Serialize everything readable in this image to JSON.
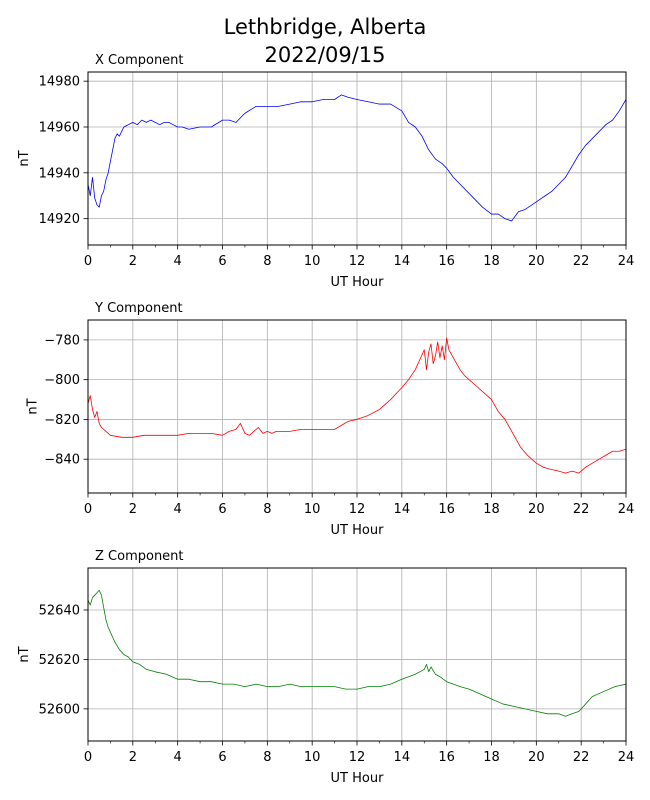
{
  "title": {
    "line1": "Lethbridge, Alberta",
    "line2": "2022/09/15"
  },
  "chart_data": [
    {
      "type": "line",
      "title": "X Component",
      "xlabel": "UT Hour",
      "ylabel": "nT",
      "xlim": [
        0,
        24
      ],
      "ylim": [
        14908.5,
        14984
      ],
      "xticks": [
        0,
        2,
        4,
        6,
        8,
        10,
        12,
        14,
        16,
        18,
        20,
        22,
        24
      ],
      "yticks": [
        14920,
        14940,
        14960,
        14980
      ],
      "grid": true,
      "series": [
        {
          "color": "#0000ff",
          "x": [
            0,
            0.1,
            0.2,
            0.3,
            0.4,
            0.5,
            0.6,
            0.7,
            0.8,
            0.9,
            1.0,
            1.1,
            1.2,
            1.3,
            1.4,
            1.5,
            1.6,
            1.8,
            2.0,
            2.2,
            2.4,
            2.6,
            2.8,
            3.0,
            3.2,
            3.4,
            3.6,
            3.8,
            4.0,
            4.2,
            4.5,
            5.0,
            5.5,
            6.0,
            6.3,
            6.6,
            7.0,
            7.5,
            8.0,
            8.5,
            9.0,
            9.5,
            10.0,
            10.5,
            11.0,
            11.3,
            11.6,
            12.0,
            12.5,
            13.0,
            13.5,
            14.0,
            14.3,
            14.6,
            14.9,
            15.2,
            15.5,
            15.8,
            16.0,
            16.3,
            16.6,
            17.0,
            17.3,
            17.6,
            18.0,
            18.3,
            18.6,
            18.9,
            19.2,
            19.5,
            19.8,
            20.1,
            20.4,
            20.7,
            21.0,
            21.3,
            21.6,
            21.9,
            22.2,
            22.5,
            22.8,
            23.1,
            23.4,
            23.7,
            24.0
          ],
          "y": [
            14935,
            14930,
            14938,
            14929,
            14926,
            14925,
            14930,
            14932,
            14937,
            14940,
            14945,
            14950,
            14955,
            14957,
            14956,
            14958,
            14960,
            14961,
            14962,
            14961,
            14963,
            14962,
            14963,
            14962,
            14961,
            14962,
            14962,
            14961,
            14960,
            14960,
            14959,
            14960,
            14960,
            14963,
            14963,
            14962,
            14966,
            14969,
            14969,
            14969,
            14970,
            14971,
            14971,
            14972,
            14972,
            14974,
            14973,
            14972,
            14971,
            14970,
            14970,
            14967,
            14962,
            14960,
            14956,
            14950,
            14946,
            14944,
            14942,
            14938,
            14935,
            14931,
            14928,
            14925,
            14922,
            14922,
            14920,
            14919,
            14923,
            14924,
            14926,
            14928,
            14930,
            14932,
            14935,
            14938,
            14943,
            14948,
            14952,
            14955,
            14958,
            14961,
            14963,
            14967,
            14972
          ]
        }
      ]
    },
    {
      "type": "line",
      "title": "Y Component",
      "xlabel": "UT Hour",
      "ylabel": "nT",
      "xlim": [
        0,
        24
      ],
      "ylim": [
        -857,
        -770
      ],
      "xticks": [
        0,
        2,
        4,
        6,
        8,
        10,
        12,
        14,
        16,
        18,
        20,
        22,
        24
      ],
      "yticks": [
        -840,
        -820,
        -800,
        -780
      ],
      "grid": true,
      "series": [
        {
          "color": "#ff0000",
          "x": [
            0,
            0.1,
            0.2,
            0.3,
            0.4,
            0.5,
            0.6,
            0.8,
            1.0,
            1.5,
            2.0,
            2.5,
            3.0,
            3.5,
            4.0,
            4.5,
            5.0,
            5.5,
            6.0,
            6.3,
            6.6,
            6.8,
            7.0,
            7.2,
            7.4,
            7.6,
            7.8,
            8.0,
            8.2,
            8.4,
            8.6,
            9.0,
            9.5,
            10.0,
            10.5,
            11.0,
            11.3,
            11.6,
            12.0,
            12.5,
            13.0,
            13.5,
            14.0,
            14.3,
            14.6,
            14.8,
            15.0,
            15.1,
            15.2,
            15.3,
            15.4,
            15.5,
            15.6,
            15.7,
            15.8,
            15.9,
            16.0,
            16.1,
            16.2,
            16.4,
            16.6,
            16.8,
            17.0,
            17.3,
            17.6,
            18.0,
            18.3,
            18.6,
            19.0,
            19.3,
            19.6,
            20.0,
            20.3,
            20.6,
            21.0,
            21.3,
            21.6,
            21.9,
            22.2,
            22.5,
            22.8,
            23.1,
            23.4,
            23.7,
            24.0
          ],
          "y": [
            -812,
            -808,
            -815,
            -819,
            -816,
            -822,
            -824,
            -826,
            -828,
            -829,
            -829,
            -828,
            -828,
            -828,
            -828,
            -827,
            -827,
            -827,
            -828,
            -826,
            -825,
            -822,
            -827,
            -828,
            -826,
            -824,
            -827,
            -826,
            -827,
            -826,
            -826,
            -826,
            -825,
            -825,
            -825,
            -825,
            -823,
            -821,
            -820,
            -818,
            -815,
            -810,
            -804,
            -800,
            -795,
            -790,
            -785,
            -795,
            -786,
            -782,
            -792,
            -788,
            -781,
            -789,
            -783,
            -790,
            -779,
            -785,
            -787,
            -791,
            -795,
            -798,
            -800,
            -803,
            -806,
            -810,
            -816,
            -820,
            -828,
            -834,
            -838,
            -842,
            -844,
            -845,
            -846,
            -847,
            -846,
            -847,
            -844,
            -842,
            -840,
            -838,
            -836,
            -836,
            -835
          ]
        }
      ]
    },
    {
      "type": "line",
      "title": "Z Component",
      "xlabel": "UT Hour",
      "ylabel": "nT",
      "xlim": [
        0,
        24
      ],
      "ylim": [
        52587,
        52657
      ],
      "xticks": [
        0,
        2,
        4,
        6,
        8,
        10,
        12,
        14,
        16,
        18,
        20,
        22,
        24
      ],
      "yticks": [
        52600,
        52620,
        52640
      ],
      "grid": true,
      "series": [
        {
          "color": "#008000",
          "x": [
            0,
            0.1,
            0.2,
            0.3,
            0.4,
            0.5,
            0.6,
            0.7,
            0.8,
            0.9,
            1.0,
            1.2,
            1.4,
            1.6,
            1.8,
            2.0,
            2.3,
            2.6,
            3.0,
            3.5,
            4.0,
            4.5,
            5.0,
            5.5,
            6.0,
            6.5,
            7.0,
            7.5,
            8.0,
            8.5,
            9.0,
            9.5,
            10.0,
            10.5,
            11.0,
            11.5,
            12.0,
            12.5,
            13.0,
            13.5,
            14.0,
            14.3,
            14.6,
            14.8,
            15.0,
            15.1,
            15.2,
            15.3,
            15.5,
            15.7,
            16.0,
            16.3,
            16.6,
            17.0,
            17.5,
            18.0,
            18.5,
            19.0,
            19.5,
            20.0,
            20.5,
            21.0,
            21.3,
            21.6,
            21.9,
            22.2,
            22.5,
            23.0,
            23.5,
            24.0
          ],
          "y": [
            52644,
            52642,
            52645,
            52646,
            52647,
            52648,
            52646,
            52641,
            52636,
            52633,
            52631,
            52627,
            52624,
            52622,
            52621,
            52619,
            52618,
            52616,
            52615,
            52614,
            52612,
            52612,
            52611,
            52611,
            52610,
            52610,
            52609,
            52610,
            52609,
            52609,
            52610,
            52609,
            52609,
            52609,
            52609,
            52608,
            52608,
            52609,
            52609,
            52610,
            52612,
            52613,
            52614,
            52615,
            52616,
            52618,
            52615,
            52617,
            52614,
            52613,
            52611,
            52610,
            52609,
            52608,
            52606,
            52604,
            52602,
            52601,
            52600,
            52599,
            52598,
            52598,
            52597,
            52598,
            52599,
            52602,
            52605,
            52607,
            52609,
            52610
          ]
        }
      ]
    }
  ]
}
